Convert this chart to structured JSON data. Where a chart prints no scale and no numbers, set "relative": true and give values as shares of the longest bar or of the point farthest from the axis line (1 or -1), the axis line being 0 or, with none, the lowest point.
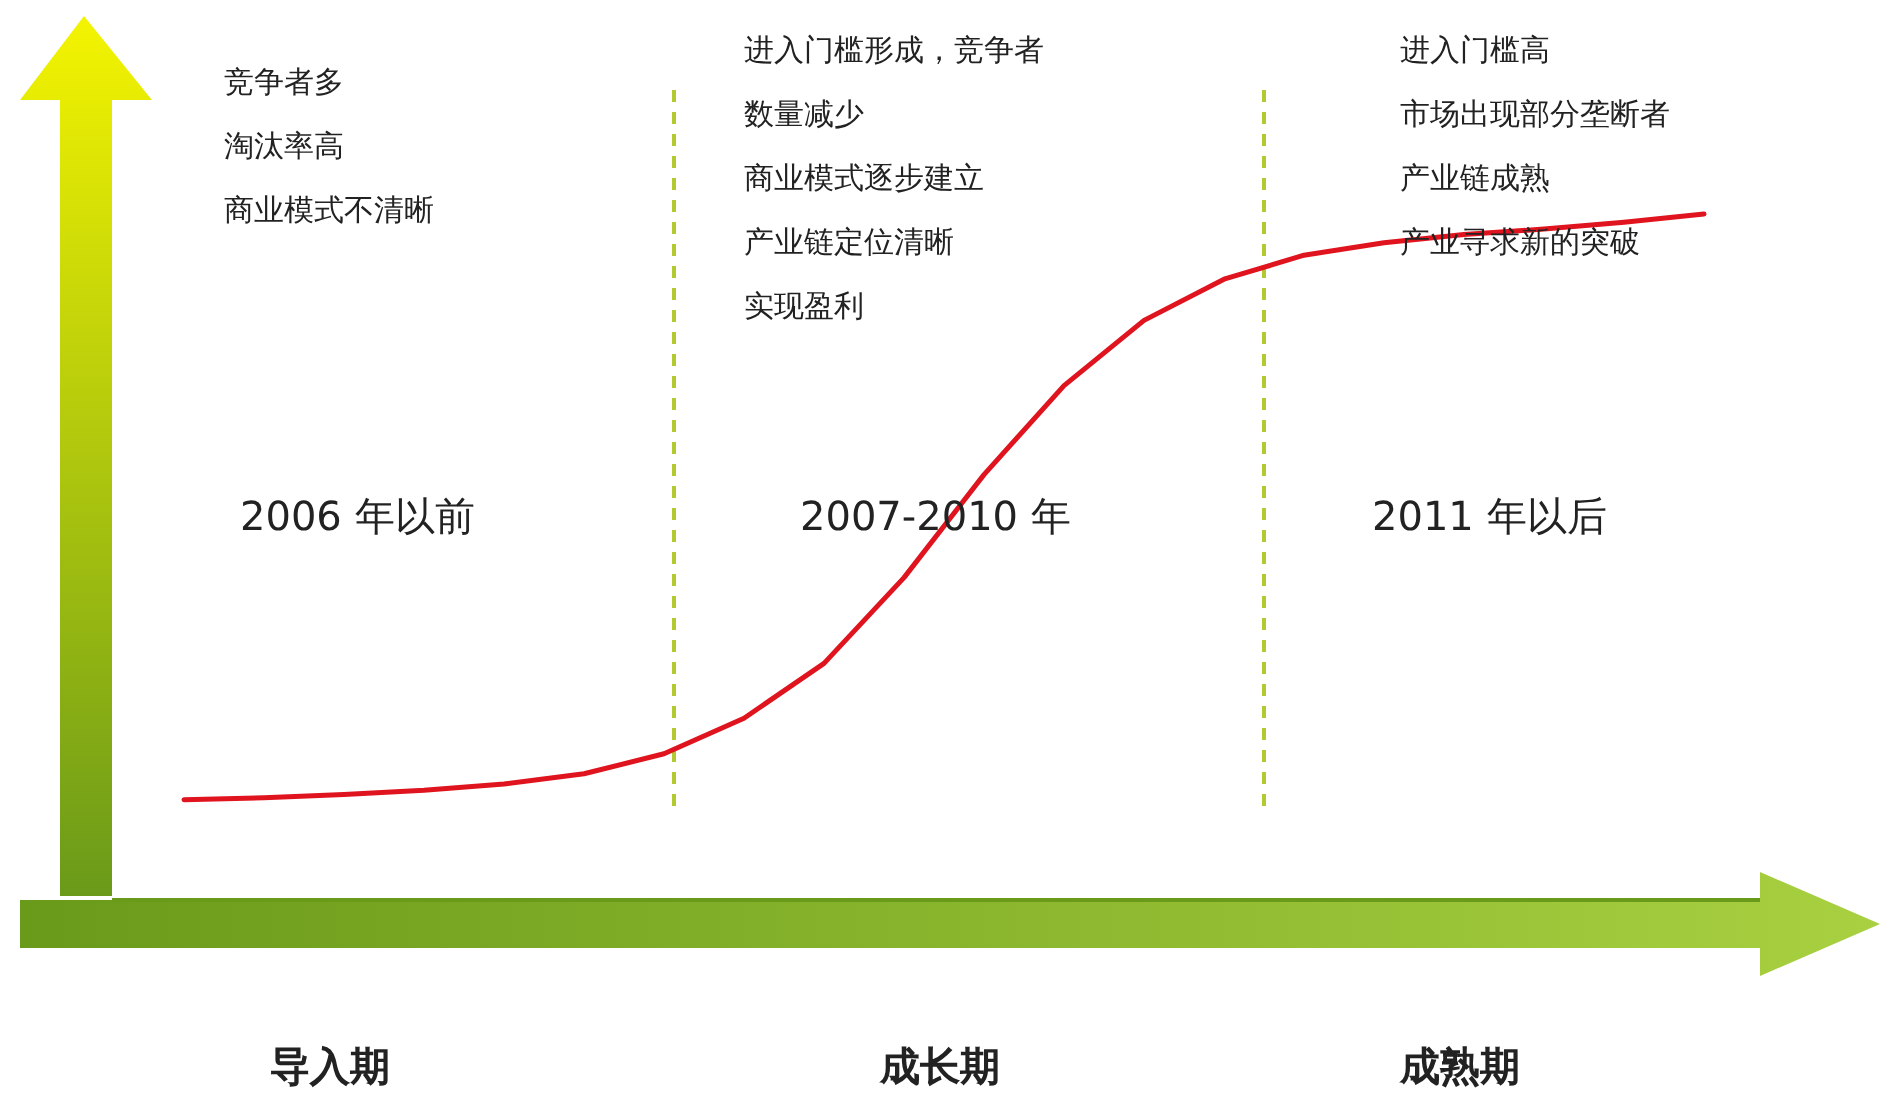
{
  "chart_data": {
    "type": "line",
    "relative": true,
    "categories": [
      null,
      null,
      null,
      null,
      null,
      null,
      null,
      null,
      null,
      null,
      null,
      null,
      null,
      null,
      null,
      null,
      null,
      null,
      null,
      null
    ],
    "series": [
      {
        "color": "#e0141e",
        "values": [
          0.146,
          0.149,
          0.154,
          0.16,
          0.169,
          0.184,
          0.213,
          0.265,
          0.345,
          0.47,
          0.62,
          0.75,
          0.845,
          0.905,
          0.94,
          0.958,
          0.97,
          0.978,
          0.988,
          1.0
        ]
      }
    ],
    "annotations": [
      "竞争者多",
      "淘汰率高",
      "商业模式不清晰",
      "进入门槛形成，竞争者",
      "数量减少",
      "商业模式逐步建立",
      "产业链定位清晰",
      "实现盈利",
      "进入门槛高",
      "市场出现部分垄断者",
      "产业链成熟",
      "产业寻求新的突破",
      "2006 年以前",
      "2007-2010 年",
      "2011 年以后",
      "导入期",
      "成长期",
      "成熟期"
    ],
    "marker": "none",
    "line_style": "solid"
  }
}
